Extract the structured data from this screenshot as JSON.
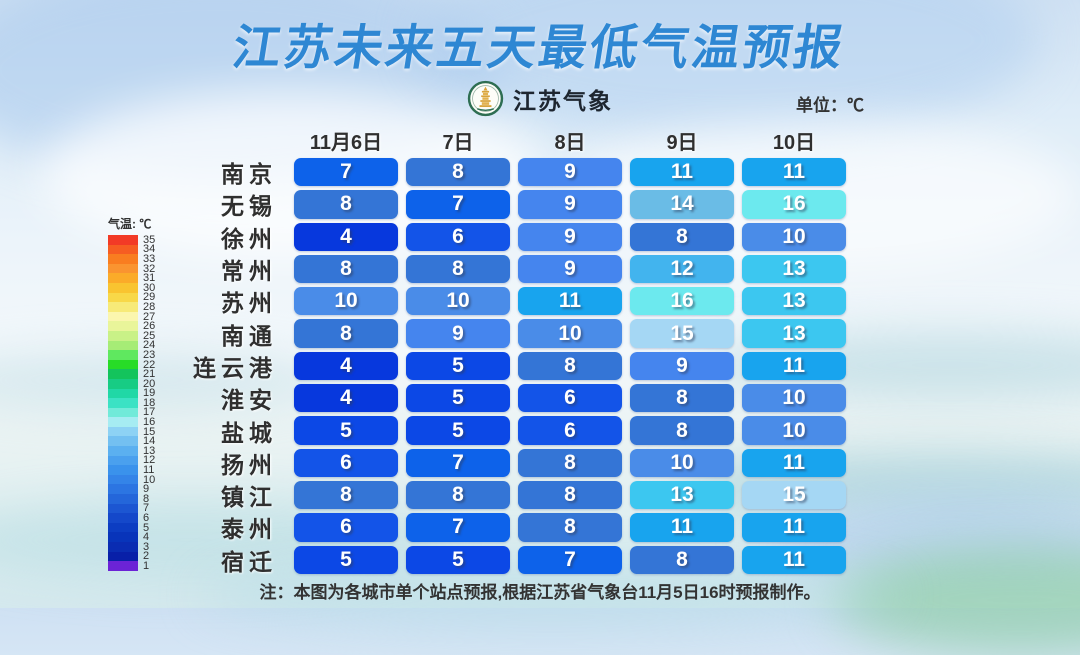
{
  "title": "江苏未来五天最低气温预报",
  "logo_text": "江苏气象",
  "unit_label": "单位：℃",
  "note": "注：本图为各城市单个站点预报,根据江苏省气象台11月5日16时预报制作。",
  "legend": {
    "label": "气温: ℃",
    "values": [
      35,
      34,
      33,
      32,
      31,
      30,
      29,
      28,
      27,
      26,
      25,
      24,
      23,
      22,
      21,
      20,
      19,
      18,
      17,
      16,
      15,
      14,
      13,
      12,
      11,
      10,
      9,
      8,
      7,
      6,
      5,
      4,
      3,
      2,
      1
    ],
    "colors": [
      "#f23a26",
      "#f65d22",
      "#f97d20",
      "#fa9430",
      "#fbab29",
      "#f9c430",
      "#f8d848",
      "#f7ea78",
      "#fbf6ae",
      "#e9f59a",
      "#c9f187",
      "#a6ec76",
      "#5fe85f",
      "#27dc27",
      "#13c45c",
      "#17cc84",
      "#20d8a6",
      "#3be2c4",
      "#71ead9",
      "#a6ecf2",
      "#8dd2f4",
      "#73c0f1",
      "#5bb0f0",
      "#4aa0ee",
      "#3a92ec",
      "#3484e8",
      "#2c75e2",
      "#2466da",
      "#1c56d2",
      "#1448ca",
      "#0c3dc2",
      "#0834ba",
      "#0a2cb2",
      "#081fa8",
      "#6b23d6"
    ]
  },
  "cell_colors": {
    "4": "#0738dd",
    "5": "#0c48e6",
    "6": "#1354e8",
    "7": "#0d62ea",
    "8": "#3475d6",
    "9": "#4585ee",
    "10": "#4a8ce8",
    "11": "#18a4ee",
    "12": "#42b4ee",
    "13": "#3cc7f0",
    "14": "#6abce6",
    "15": "#a5d7f4",
    "16": "#6ce9ee"
  },
  "chart_data": {
    "type": "heatmap",
    "title": "江苏未来五天最低气温预报",
    "unit": "℃",
    "columns": [
      "11月6日",
      "7日",
      "8日",
      "9日",
      "10日"
    ],
    "rows": [
      {
        "city": "南京",
        "values": [
          7,
          8,
          9,
          11,
          11
        ]
      },
      {
        "city": "无锡",
        "values": [
          8,
          7,
          9,
          14,
          16
        ]
      },
      {
        "city": "徐州",
        "values": [
          4,
          6,
          9,
          8,
          10
        ]
      },
      {
        "city": "常州",
        "values": [
          8,
          8,
          9,
          12,
          13
        ]
      },
      {
        "city": "苏州",
        "values": [
          10,
          10,
          11,
          16,
          13
        ]
      },
      {
        "city": "南通",
        "values": [
          8,
          9,
          10,
          15,
          13
        ]
      },
      {
        "city": "连云港",
        "values": [
          4,
          5,
          8,
          9,
          11
        ]
      },
      {
        "city": "淮安",
        "values": [
          4,
          5,
          6,
          8,
          10
        ]
      },
      {
        "city": "盐城",
        "values": [
          5,
          5,
          6,
          8,
          10
        ]
      },
      {
        "city": "扬州",
        "values": [
          6,
          7,
          8,
          10,
          11
        ]
      },
      {
        "city": "镇江",
        "values": [
          8,
          8,
          8,
          13,
          15
        ]
      },
      {
        "city": "泰州",
        "values": [
          6,
          7,
          8,
          11,
          11
        ]
      },
      {
        "city": "宿迁",
        "values": [
          5,
          5,
          7,
          8,
          11
        ]
      }
    ],
    "legend_position": "left",
    "value_range_shown": [
      1,
      35
    ]
  }
}
